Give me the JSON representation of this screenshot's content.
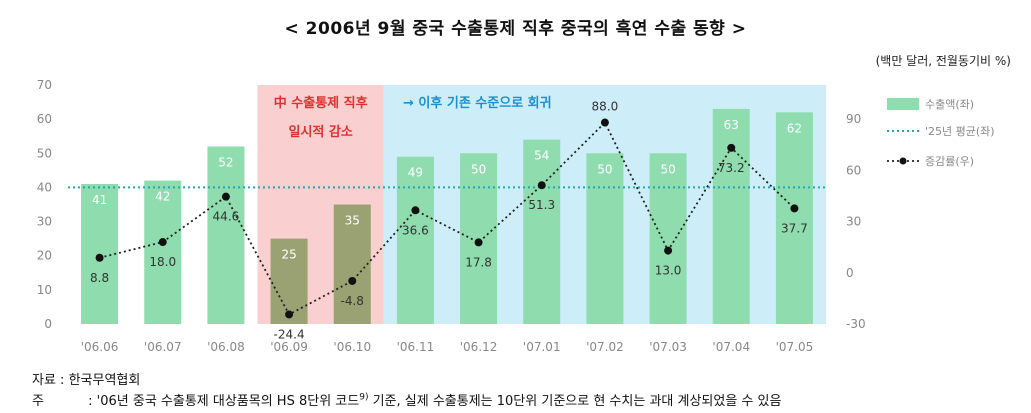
{
  "title": "< 2006년 9월 중국 수출통제 직후 중국의 흑연 수출 동향 >",
  "unit": "(백만 달러, 전월동기비 %)",
  "source": "자료 : 한국무역협회",
  "note": {
    "label": "주",
    "text_before": " : '06년 중국 수출통제 대상품목의 HS 8단위 코드",
    "sup": "9)",
    "text_after": " 기준, 실제 수출통제는 10단위 기준으로 현 수치는 과대 계상되었을 수 있음"
  },
  "colors": {
    "bar": "#8fdcae",
    "bar_highlight": "#8a9a64",
    "band_red": "#f9cfcf",
    "band_blue": "#cdeef8",
    "avg_line": "#1fa9b6",
    "growth_line": "#222222"
  },
  "chart_data": {
    "type": "bar",
    "categories": [
      "'06.06",
      "'06.07",
      "'06.08",
      "'06.09",
      "'06.10",
      "'06.11",
      "'06.12",
      "'07.01",
      "'07.02",
      "'07.03",
      "'07.04",
      "'07.05"
    ],
    "series": [
      {
        "name": "수출액(좌)",
        "type": "bar",
        "axis": "left",
        "values": [
          41,
          42,
          52,
          25,
          35,
          49,
          50,
          54,
          50,
          50,
          63,
          62
        ]
      },
      {
        "name": "'25년 평균(좌)",
        "type": "line",
        "axis": "left",
        "style": "dotted",
        "values": [
          40,
          40,
          40,
          40,
          40,
          40,
          40,
          40,
          40,
          40,
          40,
          40
        ]
      },
      {
        "name": "증감률(우)",
        "type": "line",
        "axis": "right",
        "style": "dotted-marker",
        "values": [
          8.8,
          18.0,
          44.6,
          -24.4,
          -4.8,
          36.6,
          17.8,
          51.3,
          88.0,
          13.0,
          73.2,
          37.7
        ]
      }
    ],
    "left_axis": {
      "ylim": [
        0,
        70
      ],
      "ticks": [
        0,
        10,
        20,
        30,
        40,
        50,
        60,
        70
      ]
    },
    "right_axis": {
      "ylim": [
        -30,
        110
      ],
      "ticks": [
        -30,
        0,
        30,
        60,
        90
      ]
    },
    "annotations": [
      {
        "text": "中 수출통제 직후",
        "span": [
          "'06.09",
          "'06.10"
        ]
      },
      {
        "text": "일시적 감소",
        "span": [
          "'06.09",
          "'06.10"
        ]
      },
      {
        "text": "→ 이후 기존 수준으로 회귀",
        "span": [
          "'06.11",
          "'07.05"
        ]
      }
    ],
    "legend": {
      "position": "right"
    }
  }
}
